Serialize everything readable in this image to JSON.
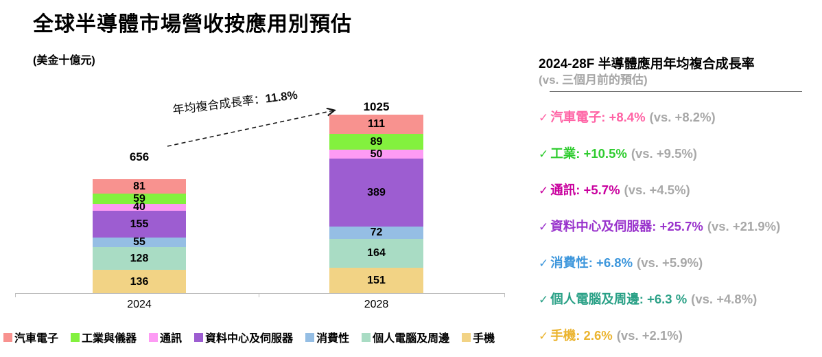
{
  "title": "全球半導體市場營收按應用別預估",
  "unit_label": "(美金十億元)",
  "chart_data": {
    "type": "bar",
    "stacked": true,
    "title": "全球半導體市場營收按應用別預估",
    "unit": "美金十億元",
    "categories": [
      "2024",
      "2028"
    ],
    "totals": [
      656,
      1025
    ],
    "series": [
      {
        "name": "汽車電子",
        "color": "#F8928F",
        "values": [
          81,
          111
        ]
      },
      {
        "name": "工業與儀器",
        "color": "#83F13E",
        "values": [
          59,
          89
        ]
      },
      {
        "name": "通訊",
        "color": "#FD9BF4",
        "values": [
          40,
          50
        ]
      },
      {
        "name": "資料中心及伺服器",
        "color": "#9D5DD1",
        "values": [
          155,
          389
        ]
      },
      {
        "name": "消費性",
        "color": "#95BEE4",
        "values": [
          55,
          72
        ]
      },
      {
        "name": "個人電腦及周邊",
        "color": "#A9DCC4",
        "values": [
          128,
          164
        ]
      },
      {
        "name": "手機",
        "color": "#F2D385",
        "values": [
          136,
          151
        ]
      }
    ],
    "annotation": {
      "label": "年均複合成長率：",
      "value": "11.8%"
    },
    "legend_position": "bottom",
    "ylim": [
      0,
      1100
    ],
    "grid": false
  },
  "growth_panel": {
    "title": "2024-28F 半導體應用年均複合成長率",
    "subtitle": "(vs. 三個月前的預估)",
    "check_glyph": "✓",
    "items": [
      {
        "name": "汽車電子",
        "cagr": "+8.4%",
        "vs": "(vs. +8.2%)",
        "color": "#FF63A5"
      },
      {
        "name": "工業",
        "cagr": "+10.5%",
        "vs": "(vs. +9.5%)",
        "color": "#2FCC2F"
      },
      {
        "name": "通訊",
        "cagr": "+5.7%",
        "vs": "(vs. +4.5%)",
        "color": "#C9009E"
      },
      {
        "name": "資料中心及伺服器",
        "cagr": "+25.7%",
        "vs": "(vs. +21.9%)",
        "color": "#9933CC"
      },
      {
        "name": "消費性",
        "cagr": "+6.8%",
        "vs": "(vs. +5.9%)",
        "color": "#3E97DC"
      },
      {
        "name": "個人電腦及周邊",
        "cagr": "+6.3 %",
        "vs": "(vs. +4.8%)",
        "color": "#2BA187"
      },
      {
        "name": "手機",
        "cagr": "2.6%",
        "vs": "(vs. +2.1%)",
        "color": "#EBB42F"
      }
    ]
  },
  "colors": {
    "axis": "#BFBFBF",
    "vs_text": "#A8A8A8",
    "arrow": "#1A1A1A"
  }
}
